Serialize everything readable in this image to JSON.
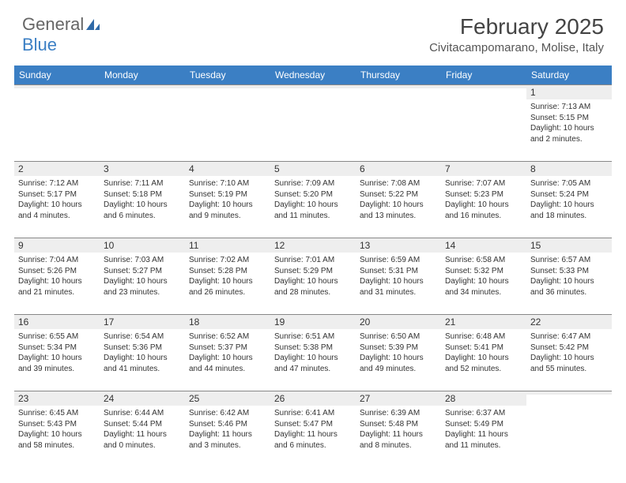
{
  "logo": {
    "text1": "General",
    "text2": "Blue"
  },
  "title": "February 2025",
  "location": "Civitacampomarano, Molise, Italy",
  "colors": {
    "header_bg": "#3b7fc4",
    "header_text": "#ffffff",
    "stripe_bg": "#eeeeee",
    "border": "#888888",
    "text": "#333333"
  },
  "weekdays": [
    "Sunday",
    "Monday",
    "Tuesday",
    "Wednesday",
    "Thursday",
    "Friday",
    "Saturday"
  ],
  "weeks": [
    [
      null,
      null,
      null,
      null,
      null,
      null,
      {
        "n": "1",
        "sunrise": "Sunrise: 7:13 AM",
        "sunset": "Sunset: 5:15 PM",
        "d1": "Daylight: 10 hours",
        "d2": "and 2 minutes."
      }
    ],
    [
      {
        "n": "2",
        "sunrise": "Sunrise: 7:12 AM",
        "sunset": "Sunset: 5:17 PM",
        "d1": "Daylight: 10 hours",
        "d2": "and 4 minutes."
      },
      {
        "n": "3",
        "sunrise": "Sunrise: 7:11 AM",
        "sunset": "Sunset: 5:18 PM",
        "d1": "Daylight: 10 hours",
        "d2": "and 6 minutes."
      },
      {
        "n": "4",
        "sunrise": "Sunrise: 7:10 AM",
        "sunset": "Sunset: 5:19 PM",
        "d1": "Daylight: 10 hours",
        "d2": "and 9 minutes."
      },
      {
        "n": "5",
        "sunrise": "Sunrise: 7:09 AM",
        "sunset": "Sunset: 5:20 PM",
        "d1": "Daylight: 10 hours",
        "d2": "and 11 minutes."
      },
      {
        "n": "6",
        "sunrise": "Sunrise: 7:08 AM",
        "sunset": "Sunset: 5:22 PM",
        "d1": "Daylight: 10 hours",
        "d2": "and 13 minutes."
      },
      {
        "n": "7",
        "sunrise": "Sunrise: 7:07 AM",
        "sunset": "Sunset: 5:23 PM",
        "d1": "Daylight: 10 hours",
        "d2": "and 16 minutes."
      },
      {
        "n": "8",
        "sunrise": "Sunrise: 7:05 AM",
        "sunset": "Sunset: 5:24 PM",
        "d1": "Daylight: 10 hours",
        "d2": "and 18 minutes."
      }
    ],
    [
      {
        "n": "9",
        "sunrise": "Sunrise: 7:04 AM",
        "sunset": "Sunset: 5:26 PM",
        "d1": "Daylight: 10 hours",
        "d2": "and 21 minutes."
      },
      {
        "n": "10",
        "sunrise": "Sunrise: 7:03 AM",
        "sunset": "Sunset: 5:27 PM",
        "d1": "Daylight: 10 hours",
        "d2": "and 23 minutes."
      },
      {
        "n": "11",
        "sunrise": "Sunrise: 7:02 AM",
        "sunset": "Sunset: 5:28 PM",
        "d1": "Daylight: 10 hours",
        "d2": "and 26 minutes."
      },
      {
        "n": "12",
        "sunrise": "Sunrise: 7:01 AM",
        "sunset": "Sunset: 5:29 PM",
        "d1": "Daylight: 10 hours",
        "d2": "and 28 minutes."
      },
      {
        "n": "13",
        "sunrise": "Sunrise: 6:59 AM",
        "sunset": "Sunset: 5:31 PM",
        "d1": "Daylight: 10 hours",
        "d2": "and 31 minutes."
      },
      {
        "n": "14",
        "sunrise": "Sunrise: 6:58 AM",
        "sunset": "Sunset: 5:32 PM",
        "d1": "Daylight: 10 hours",
        "d2": "and 34 minutes."
      },
      {
        "n": "15",
        "sunrise": "Sunrise: 6:57 AM",
        "sunset": "Sunset: 5:33 PM",
        "d1": "Daylight: 10 hours",
        "d2": "and 36 minutes."
      }
    ],
    [
      {
        "n": "16",
        "sunrise": "Sunrise: 6:55 AM",
        "sunset": "Sunset: 5:34 PM",
        "d1": "Daylight: 10 hours",
        "d2": "and 39 minutes."
      },
      {
        "n": "17",
        "sunrise": "Sunrise: 6:54 AM",
        "sunset": "Sunset: 5:36 PM",
        "d1": "Daylight: 10 hours",
        "d2": "and 41 minutes."
      },
      {
        "n": "18",
        "sunrise": "Sunrise: 6:52 AM",
        "sunset": "Sunset: 5:37 PM",
        "d1": "Daylight: 10 hours",
        "d2": "and 44 minutes."
      },
      {
        "n": "19",
        "sunrise": "Sunrise: 6:51 AM",
        "sunset": "Sunset: 5:38 PM",
        "d1": "Daylight: 10 hours",
        "d2": "and 47 minutes."
      },
      {
        "n": "20",
        "sunrise": "Sunrise: 6:50 AM",
        "sunset": "Sunset: 5:39 PM",
        "d1": "Daylight: 10 hours",
        "d2": "and 49 minutes."
      },
      {
        "n": "21",
        "sunrise": "Sunrise: 6:48 AM",
        "sunset": "Sunset: 5:41 PM",
        "d1": "Daylight: 10 hours",
        "d2": "and 52 minutes."
      },
      {
        "n": "22",
        "sunrise": "Sunrise: 6:47 AM",
        "sunset": "Sunset: 5:42 PM",
        "d1": "Daylight: 10 hours",
        "d2": "and 55 minutes."
      }
    ],
    [
      {
        "n": "23",
        "sunrise": "Sunrise: 6:45 AM",
        "sunset": "Sunset: 5:43 PM",
        "d1": "Daylight: 10 hours",
        "d2": "and 58 minutes."
      },
      {
        "n": "24",
        "sunrise": "Sunrise: 6:44 AM",
        "sunset": "Sunset: 5:44 PM",
        "d1": "Daylight: 11 hours",
        "d2": "and 0 minutes."
      },
      {
        "n": "25",
        "sunrise": "Sunrise: 6:42 AM",
        "sunset": "Sunset: 5:46 PM",
        "d1": "Daylight: 11 hours",
        "d2": "and 3 minutes."
      },
      {
        "n": "26",
        "sunrise": "Sunrise: 6:41 AM",
        "sunset": "Sunset: 5:47 PM",
        "d1": "Daylight: 11 hours",
        "d2": "and 6 minutes."
      },
      {
        "n": "27",
        "sunrise": "Sunrise: 6:39 AM",
        "sunset": "Sunset: 5:48 PM",
        "d1": "Daylight: 11 hours",
        "d2": "and 8 minutes."
      },
      {
        "n": "28",
        "sunrise": "Sunrise: 6:37 AM",
        "sunset": "Sunset: 5:49 PM",
        "d1": "Daylight: 11 hours",
        "d2": "and 11 minutes."
      },
      null
    ]
  ]
}
